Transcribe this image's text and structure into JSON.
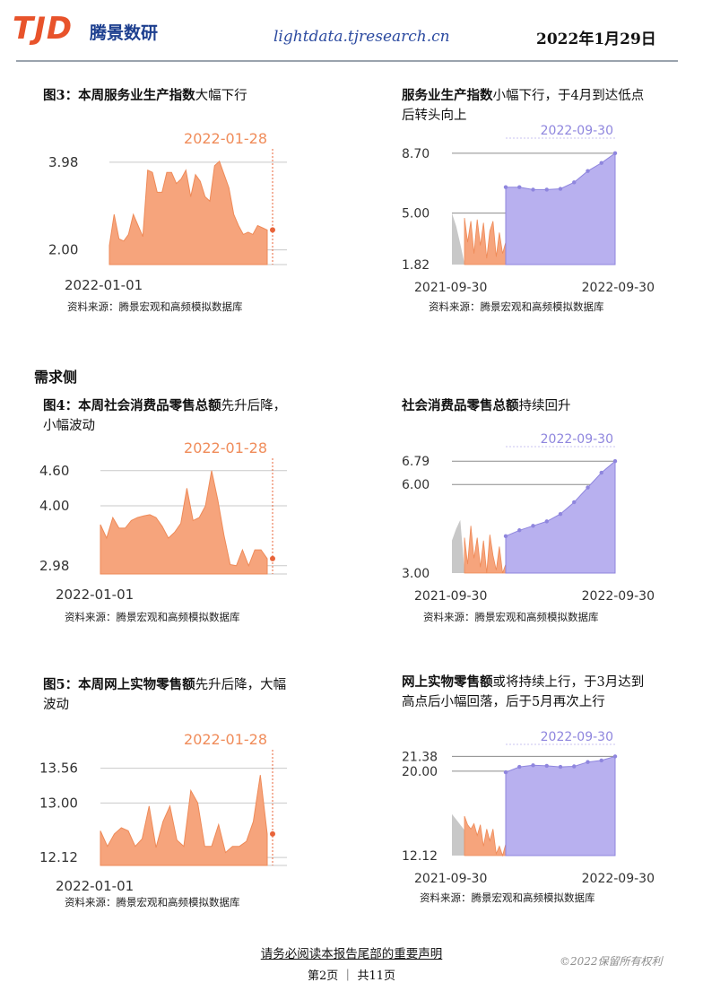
{
  "header": {
    "logo": "TJD",
    "brand": "腾景数研",
    "site": "lightdata.tjresearch.cn",
    "date": "2022年1月29日"
  },
  "section_demand": "需求侧",
  "source_text": "资料来源：腾景宏观和高频模拟数据库",
  "footer": {
    "notice": "请务必阅读本报告尾部的重要声明",
    "page": "第2页 ｜ 共11页",
    "copyright": "©2022保留所有权利"
  },
  "colors": {
    "orange": "#f6a47c",
    "orange_line": "#ee8a58",
    "orange_dot": "#e8643a",
    "purple": "#b8b0ef",
    "purple_line": "#8f86de",
    "gray": "#c8c8c8",
    "axis": "#9a9a9a"
  },
  "figures": [
    {
      "title_prefix": "图3：本周",
      "title_bold": "服务业生产指数",
      "title_suffix": "大幅下行",
      "chart_data": {
        "type": "area",
        "date_label": "2022-01-28",
        "y_ticks": [
          "3.98",
          "2.00"
        ],
        "ymin": 1.75,
        "ymax": 4.2,
        "x_start": "2022-01-01",
        "values": [
          2.1,
          2.8,
          2.25,
          2.2,
          2.35,
          2.8,
          2.55,
          2.3,
          3.8,
          3.75,
          3.3,
          3.3,
          3.75,
          3.75,
          3.5,
          3.6,
          3.8,
          3.2,
          3.7,
          3.55,
          3.2,
          3.1,
          3.9,
          4.0,
          3.7,
          3.4,
          2.8,
          2.55,
          2.35,
          2.4,
          2.35,
          2.55,
          2.5,
          2.45
        ]
      }
    },
    {
      "title_bold": "服务业生产指数",
      "title_suffix": "小幅下行，于4月到达低点后转头向上",
      "chart_data": {
        "type": "area",
        "date_label": "2022-09-30",
        "y_ticks": [
          "8.70",
          "5.00",
          "1.82"
        ],
        "ymin": 1.82,
        "ymax": 9.3,
        "x_start": "2021-09-30",
        "x_end": "2022-09-30",
        "history_gray": [
          5.0,
          4.2,
          3.1,
          1.9
        ],
        "history_orange": [
          4.7,
          3.2,
          4.5,
          2.5,
          4.6,
          3.0,
          4.4,
          2.2,
          3.9,
          4.5,
          2.3,
          3.8,
          2.5,
          3.2
        ],
        "forecast": [
          6.6,
          6.6,
          6.45,
          6.45,
          6.5,
          6.9,
          7.6,
          8.1,
          8.7
        ]
      }
    },
    {
      "title_prefix": "图4：本周",
      "title_bold": "社会消费品零售总额",
      "title_suffix": "先升后降，小幅波动",
      "chart_data": {
        "type": "area",
        "date_label": "2022-01-28",
        "y_ticks": [
          "4.60",
          "4.00",
          "2.98"
        ],
        "ymin": 2.9,
        "ymax": 4.75,
        "x_start": "2022-01-01",
        "values": [
          3.68,
          3.45,
          3.8,
          3.62,
          3.62,
          3.75,
          3.8,
          3.83,
          3.85,
          3.8,
          3.65,
          3.45,
          3.55,
          3.7,
          4.3,
          3.75,
          3.8,
          4.0,
          4.6,
          4.1,
          3.5,
          3.0,
          2.98,
          3.25,
          2.98,
          3.25,
          3.25,
          3.1
        ]
      }
    },
    {
      "title_bold": "社会消费品零售总额",
      "title_suffix": "持续回升",
      "chart_data": {
        "type": "area",
        "date_label": "2022-09-30",
        "y_ticks": [
          "6.79",
          "6.00",
          "3.00"
        ],
        "ymin": 3.0,
        "ymax": 7.1,
        "x_start": "2021-09-30",
        "x_end": "2022-09-30",
        "history_gray": [
          4.1,
          4.5,
          4.8,
          3.1
        ],
        "history_orange": [
          4.2,
          3.3,
          4.6,
          3.5,
          4.2,
          3.2,
          4.1,
          3.0,
          4.3,
          3.6,
          3.1,
          3.9,
          3.0,
          3.3
        ],
        "forecast": [
          4.25,
          4.45,
          4.6,
          4.75,
          5.0,
          5.4,
          5.9,
          6.4,
          6.79
        ]
      }
    },
    {
      "title_prefix": "图5：本周",
      "title_bold": "网上实物零售额",
      "title_suffix": "先升后降，大幅波动",
      "chart_data": {
        "type": "area",
        "date_label": "2022-01-28",
        "y_ticks": [
          "13.56",
          "13.00",
          "12.12"
        ],
        "ymin": 12.05,
        "ymax": 13.8,
        "x_start": "2022-01-01",
        "values": [
          12.55,
          12.3,
          12.5,
          12.6,
          12.55,
          12.3,
          12.42,
          12.95,
          12.28,
          12.7,
          12.95,
          12.4,
          12.3,
          13.2,
          13.0,
          12.3,
          12.3,
          12.65,
          12.2,
          12.3,
          12.3,
          12.38,
          12.7,
          13.45,
          12.5
        ]
      }
    },
    {
      "title_bold": "网上实物零售额",
      "title_suffix": "或将持续上行，于3月达到高点后小幅回落，后于5月再次上行",
      "chart_data": {
        "type": "area",
        "date_label": "2022-09-30",
        "y_ticks": [
          "21.38",
          "20.00",
          "12.12"
        ],
        "ymin": 12.12,
        "ymax": 22.0,
        "x_start": "2021-09-30",
        "x_end": "2022-09-30",
        "history_gray": [
          16.0,
          15.5,
          15.0,
          14.5
        ],
        "history_orange": [
          15.8,
          15.0,
          14.6,
          15.1,
          14.0,
          15.0,
          13.0,
          14.6,
          13.5,
          14.6,
          12.3,
          13.0,
          12.12,
          13.2
        ],
        "forecast": [
          19.9,
          20.4,
          20.55,
          20.5,
          20.4,
          20.45,
          20.85,
          21.0,
          21.38
        ]
      }
    }
  ]
}
